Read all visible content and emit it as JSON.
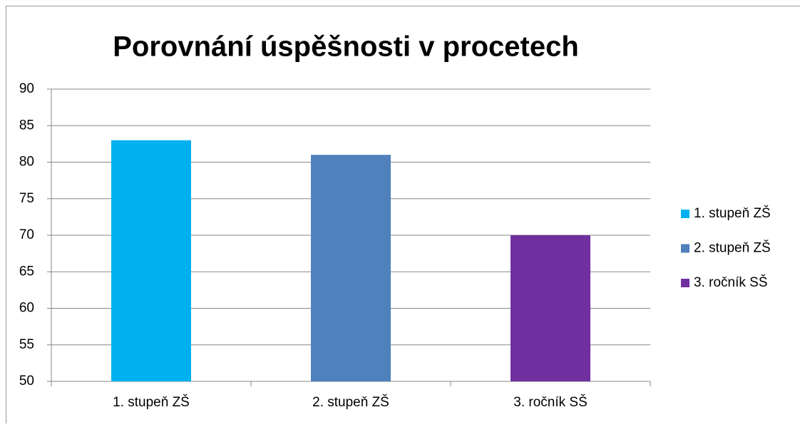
{
  "chart_data": {
    "type": "bar",
    "title": "Porovnání úspěšnosti v procetech",
    "categories": [
      "1. stupeň ZŠ",
      "2. stupeň ZŠ",
      "3. ročník SŠ"
    ],
    "values": [
      83,
      81,
      70
    ],
    "colors": [
      "#00b0f0",
      "#4f81bd",
      "#7030a0"
    ],
    "ylim": [
      50,
      90
    ],
    "yticks": [
      50,
      55,
      60,
      65,
      70,
      75,
      80,
      85,
      90
    ],
    "grid": true,
    "legend": "right"
  }
}
